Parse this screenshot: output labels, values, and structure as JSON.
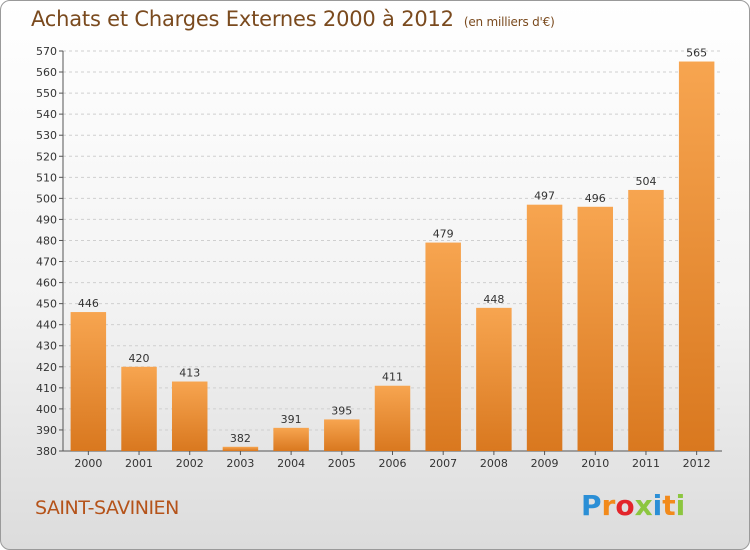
{
  "header": {
    "title": "Achats et Charges Externes 2000 à 2012",
    "unit": "(en milliers d'€)"
  },
  "footer": {
    "commune": "SAINT-SAVINIEN",
    "logo_letters": [
      "P",
      "r",
      "o",
      "x",
      "i",
      "t",
      "i"
    ],
    "logo_colors": [
      "#2b8fd6",
      "#f28a1b",
      "#e3252b",
      "#8cc63f",
      "#2b8fd6",
      "#f28a1b",
      "#8cc63f"
    ]
  },
  "colors": {
    "bar_top": "#f7a550",
    "bar_bottom": "#d9781f",
    "grid": "#cfcfcf",
    "title": "#7a4a1e",
    "commune": "#b5531a"
  },
  "chart_data": {
    "type": "bar",
    "title": "Achats et Charges Externes 2000 à 2012",
    "subtitle": "(en milliers d'€)",
    "categories": [
      "2000",
      "2001",
      "2002",
      "2003",
      "2004",
      "2005",
      "2006",
      "2007",
      "2008",
      "2009",
      "2010",
      "2011",
      "2012"
    ],
    "values": [
      446,
      420,
      413,
      382,
      391,
      395,
      411,
      479,
      448,
      497,
      496,
      504,
      565
    ],
    "xlabel": "",
    "ylabel": "",
    "ylim": [
      380,
      570
    ],
    "yticks": [
      380,
      390,
      400,
      410,
      420,
      430,
      440,
      450,
      460,
      470,
      480,
      490,
      500,
      510,
      520,
      530,
      540,
      550,
      560,
      570
    ],
    "grid": "horizontal dashed",
    "legend": "none"
  }
}
